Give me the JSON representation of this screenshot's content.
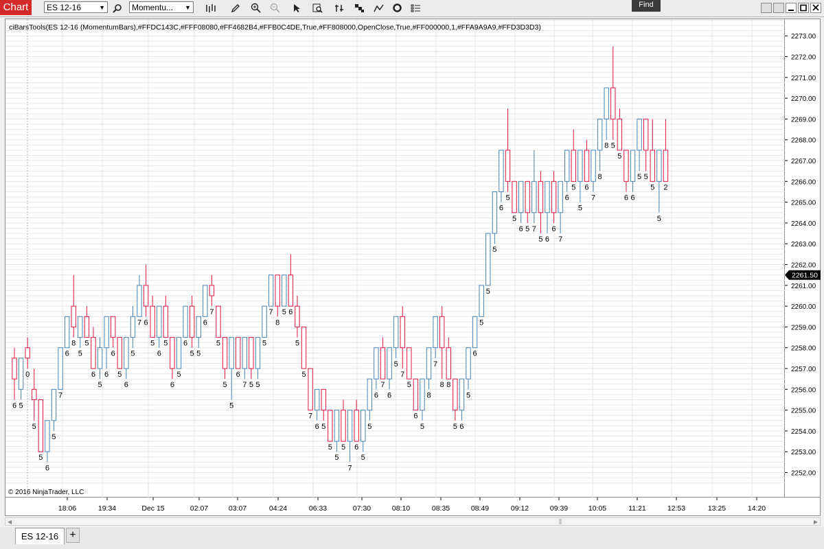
{
  "toolbar": {
    "chart_label": "Chart",
    "instrument_value": "ES 12-16",
    "indicator_value": "Momentu...",
    "find_label": "Find",
    "icons": [
      "bar-type-icon",
      "draw-pencil-icon",
      "zoom-in-icon",
      "zoom-out-icon",
      "pointer-icon",
      "data-box-icon",
      "indicators-icon",
      "strategies-icon",
      "drawing-tools-icon",
      "reload-icon",
      "properties-icon"
    ]
  },
  "window_controls": [
    "restore-icon",
    "tile-icon",
    "minimize-icon",
    "maximize-icon",
    "close-icon"
  ],
  "chart": {
    "indicator_text": "ciBarsTools(ES 12-16 (MomentumBars),#FFDC143C,#FFF08080,#FF4682B4,#FFB0C4DE,True,#FF808000,OpenClose,True,#FF000000,1,#FFA9A9A9,#FFD3D3D3)",
    "copyright": "© 2016 NinjaTrader, LLC",
    "current_price": "2261.50",
    "colors": {
      "up": "#4682B4",
      "up_fill": "#B0C4DE",
      "down": "#DC143C",
      "down_fill": "#F08080",
      "grid": "#D3D3D3",
      "label": "#000000"
    }
  },
  "chart_data": {
    "type": "candlestick",
    "y_ticks": [
      "2252.00",
      "2253.00",
      "2254.00",
      "2255.00",
      "2256.00",
      "2257.00",
      "2258.00",
      "2259.00",
      "2260.00",
      "2261.00",
      "2262.00",
      "2263.00",
      "2264.00",
      "2265.00",
      "2266.00",
      "2267.00",
      "2268.00",
      "2269.00",
      "2270.00",
      "2271.00",
      "2272.00",
      "2273.00"
    ],
    "ylim": [
      2251.5,
      2273.5
    ],
    "x_ticks": [
      "18:06",
      "19:34",
      "Dec 15",
      "02:07",
      "03:07",
      "04:24",
      "06:33",
      "07:30",
      "08:10",
      "08:35",
      "08:49",
      "09:12",
      "09:39",
      "10:05",
      "11:21",
      "12:53",
      "13:25",
      "14:20"
    ],
    "bar_counts": [
      6,
      5,
      0,
      5,
      5,
      6,
      5,
      7,
      6,
      8,
      5,
      5,
      6,
      5,
      6,
      6,
      5,
      6,
      5,
      7,
      6,
      5,
      6,
      5,
      6,
      5,
      6,
      5,
      5,
      6,
      7,
      5,
      5,
      5,
      6,
      7,
      5,
      5,
      5,
      7,
      8,
      5,
      6,
      5,
      5,
      7,
      6,
      5,
      5,
      5,
      5,
      7,
      6,
      5,
      5,
      6,
      7,
      6,
      5,
      7,
      5,
      6,
      5,
      8,
      7,
      8,
      8,
      5,
      6,
      5,
      6,
      5,
      5,
      5,
      6,
      5,
      5,
      6,
      5,
      7,
      5,
      6,
      6,
      7,
      6,
      5,
      5,
      6,
      7,
      8,
      8,
      5,
      5,
      6,
      6,
      5,
      5,
      5,
      5,
      2
    ]
  },
  "tabs": [
    {
      "label": "ES 12-16"
    }
  ],
  "add_tab_label": "+"
}
